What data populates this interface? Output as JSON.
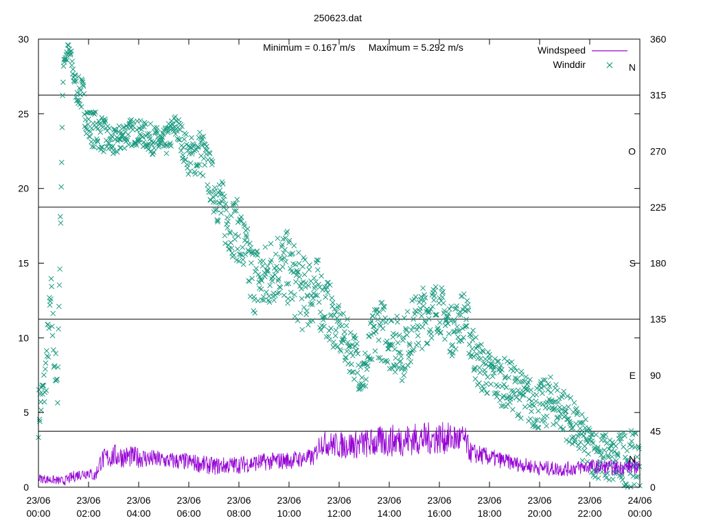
{
  "chart_data": {
    "type": "line",
    "title": "250623.dat",
    "annotation": "Minimum = 0.167 m/s     Maximum = 5.292 m/s",
    "x_tick_labels": [
      [
        "23/06",
        "00:00"
      ],
      [
        "23/06",
        "02:00"
      ],
      [
        "23/06",
        "04:00"
      ],
      [
        "23/06",
        "06:00"
      ],
      [
        "23/06",
        "08:00"
      ],
      [
        "23/06",
        "10:00"
      ],
      [
        "23/06",
        "12:00"
      ],
      [
        "23/06",
        "14:00"
      ],
      [
        "23/06",
        "16:00"
      ],
      [
        "23/06",
        "18:00"
      ],
      [
        "23/06",
        "20:00"
      ],
      [
        "23/06",
        "22:00"
      ],
      [
        "24/06",
        "00:00"
      ]
    ],
    "xlim_hours": [
      0,
      24
    ],
    "y_left": {
      "range": [
        0,
        30
      ],
      "ticks": [
        "0",
        "5",
        "10",
        "15",
        "20",
        "25",
        "30"
      ]
    },
    "y_right": {
      "range": [
        0,
        360
      ],
      "ticks": [
        "0",
        "45",
        "90",
        "135",
        "180",
        "225",
        "270",
        "315",
        "360"
      ]
    },
    "compass_labels": [
      {
        "deg": 22.5,
        "text": "N"
      },
      {
        "deg": 90,
        "text": "E"
      },
      {
        "deg": 180,
        "text": "S"
      },
      {
        "deg": 270,
        "text": "O"
      },
      {
        "deg": 337.5,
        "text": "N"
      }
    ],
    "reference_lines_deg": [
      45,
      135,
      225,
      315
    ],
    "series": [
      {
        "name": "Windspeed",
        "style": "line",
        "color": "#9400d3",
        "x_hours": [
          0,
          0.5,
          1,
          1.5,
          2,
          2.25,
          2.5,
          3,
          4,
          5,
          6,
          7,
          8,
          9,
          10,
          11,
          11.25,
          12,
          13,
          14,
          15,
          16,
          17,
          17.25,
          18,
          19,
          20,
          21,
          22,
          23,
          24
        ],
        "values": [
          0.6,
          0.5,
          0.4,
          0.8,
          1.0,
          0.7,
          1.8,
          2.1,
          2.0,
          1.8,
          1.7,
          1.4,
          1.5,
          1.7,
          1.8,
          2.0,
          3.0,
          2.8,
          2.9,
          3.1,
          3.2,
          3.3,
          3.2,
          2.3,
          2.0,
          1.6,
          1.3,
          1.2,
          1.4,
          1.3,
          1.4
        ],
        "noise_amplitude": [
          0.3,
          0.3,
          0.3,
          0.4,
          0.4,
          0.4,
          0.7,
          0.8,
          0.7,
          0.6,
          0.6,
          0.6,
          0.6,
          0.6,
          0.6,
          0.6,
          0.8,
          0.9,
          1.0,
          1.1,
          1.1,
          1.1,
          1.0,
          0.7,
          0.6,
          0.5,
          0.5,
          0.5,
          0.5,
          0.5,
          0.5
        ]
      },
      {
        "name": "Winddir",
        "style": "points",
        "marker": "x",
        "color": "#1a9a80",
        "x_hours": [
          0,
          0.25,
          0.5,
          0.75,
          1.0,
          1.25,
          1.5,
          1.75,
          2.0,
          2.5,
          3.0,
          3.5,
          4.0,
          4.5,
          5.0,
          5.5,
          6.0,
          6.5,
          7.0,
          7.5,
          8.0,
          8.5,
          9.0,
          9.5,
          10.0,
          10.5,
          11.0,
          11.5,
          12.0,
          12.5,
          13.0,
          13.5,
          14.0,
          14.5,
          15.0,
          15.5,
          16.0,
          16.5,
          17.0,
          17.5,
          18.0,
          18.5,
          19.0,
          19.5,
          20.0,
          20.5,
          21.0,
          21.5,
          22.0,
          22.5,
          23.0,
          23.5,
          24.0
        ],
        "values": [
          60,
          80,
          150,
          70,
          345,
          350,
          320,
          315,
          290,
          285,
          275,
          285,
          285,
          280,
          275,
          290,
          265,
          270,
          240,
          215,
          205,
          170,
          165,
          180,
          175,
          155,
          160,
          145,
          125,
          110,
          90,
          130,
          120,
          110,
          130,
          140,
          145,
          125,
          140,
          100,
          90,
          85,
          80,
          70,
          65,
          70,
          60,
          45,
          30,
          25,
          20,
          25,
          20
        ],
        "spread_deg": [
          20,
          20,
          25,
          20,
          10,
          8,
          10,
          15,
          15,
          15,
          12,
          12,
          10,
          12,
          12,
          12,
          15,
          20,
          20,
          25,
          25,
          30,
          30,
          30,
          30,
          30,
          30,
          25,
          20,
          20,
          20,
          25,
          25,
          25,
          25,
          25,
          20,
          20,
          20,
          20,
          20,
          20,
          20,
          20,
          20,
          20,
          20,
          20,
          20,
          20,
          20,
          25,
          20
        ]
      }
    ],
    "legend_position": "top-right",
    "grid": false
  }
}
